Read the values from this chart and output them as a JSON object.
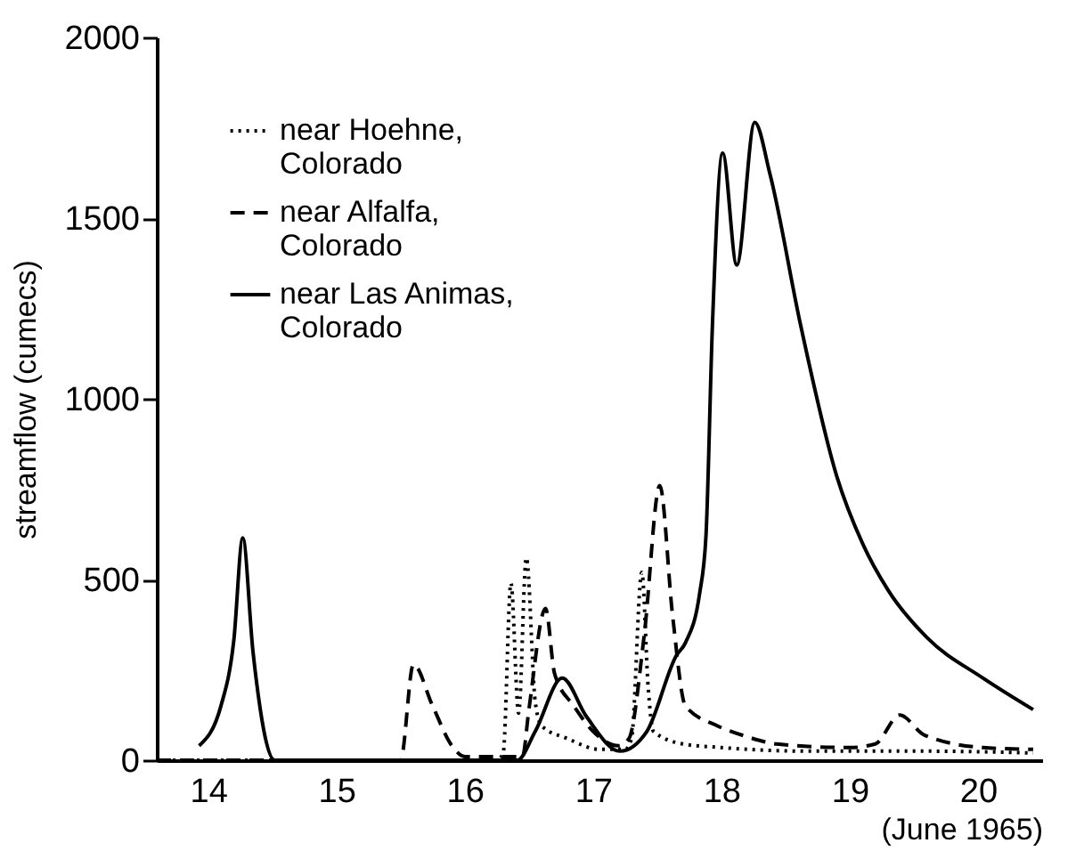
{
  "chart_data": {
    "type": "line",
    "xlabel": "(June 1965)",
    "ylabel": "streamflow (cumecs)",
    "xlim": [
      13.6,
      20.5
    ],
    "xticks": [
      14,
      15,
      16,
      17,
      18,
      19,
      20
    ],
    "ylim": [
      0,
      2000
    ],
    "yticks": [
      0,
      500,
      1000,
      1500,
      2000
    ],
    "grid": false,
    "legend": "top left",
    "marker": "none",
    "series": [
      {
        "name": "near Hoehne, Colorado",
        "color": "#000000",
        "line_style": "dotted",
        "x": [
          13.6,
          16.25,
          16.3,
          16.36,
          16.42,
          16.48,
          16.55,
          16.6,
          16.8,
          17.05,
          17.25,
          17.3,
          17.38,
          17.43,
          17.47,
          17.7,
          18.0,
          18.66,
          19.6,
          20.43
        ],
        "values": [
          0,
          0,
          20,
          490,
          130,
          560,
          160,
          95,
          60,
          30,
          30,
          60,
          520,
          200,
          80,
          45,
          35,
          25,
          25,
          20
        ]
      },
      {
        "name": "near Alfalfa, Colorado",
        "color": "#000000",
        "line_style": "dashed",
        "x": [
          13.6,
          15.5,
          15.6,
          15.75,
          15.9,
          16.0,
          16.45,
          16.5,
          16.63,
          16.7,
          16.85,
          17.0,
          17.2,
          17.28,
          17.4,
          17.52,
          17.62,
          17.72,
          17.97,
          18.2,
          18.43,
          19.0,
          19.2,
          19.39,
          19.58,
          20.04,
          20.43
        ],
        "values": [
          0,
          0,
          265,
          150,
          40,
          10,
          10,
          140,
          420,
          240,
          150,
          80,
          40,
          60,
          350,
          760,
          400,
          150,
          95,
          65,
          45,
          35,
          45,
          125,
          70,
          35,
          30
        ]
      },
      {
        "name": "near Las Animas, Colorado",
        "color": "#000000",
        "line_style": "solid",
        "x": [
          13.93,
          14.1,
          14.2,
          14.27,
          14.35,
          14.52,
          14.6,
          16.41,
          16.55,
          16.76,
          16.95,
          17.21,
          17.42,
          17.65,
          17.72,
          17.83,
          17.88,
          17.93,
          18.01,
          18.12,
          18.26,
          18.38,
          18.62,
          18.9,
          19.1,
          19.3,
          19.6,
          20.04,
          20.43
        ],
        "values": [
          40,
          150,
          330,
          615,
          300,
          0,
          0,
          0,
          80,
          227,
          120,
          25,
          80,
          290,
          325,
          460,
          620,
          1200,
          1680,
          1370,
          1765,
          1620,
          1200,
          785,
          600,
          470,
          340,
          227,
          140
        ]
      }
    ]
  }
}
